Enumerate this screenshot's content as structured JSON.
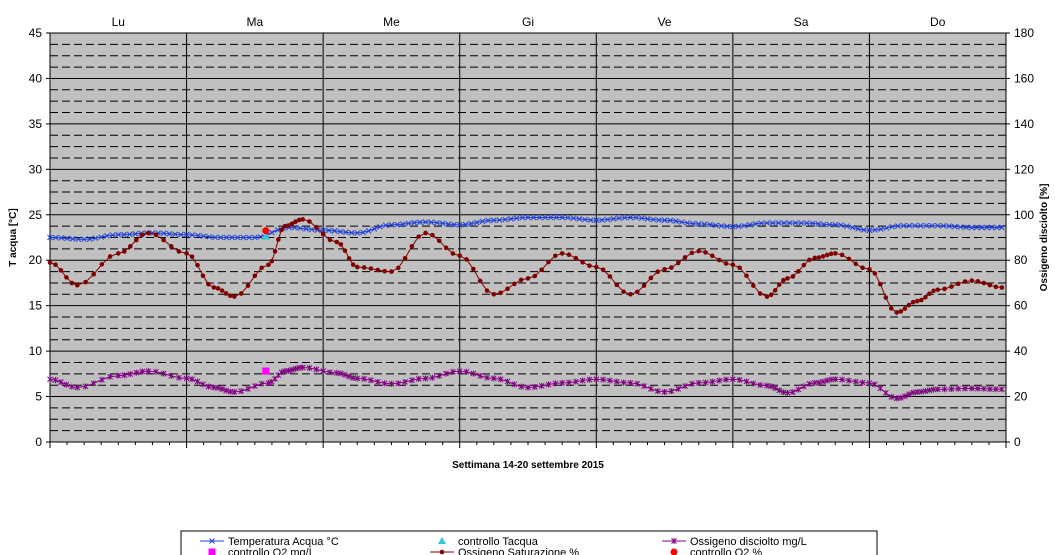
{
  "chart_data": {
    "type": "line",
    "xlabel": "Settimana    14-20  settembre  2015",
    "ylabel_left": "T acqua [°C]",
    "ylabel_right": "Ossigeno disciolto [%]",
    "ylim_left": [
      0,
      45
    ],
    "ylim_right": [
      0,
      180
    ],
    "yticks_left": [
      0,
      5,
      10,
      15,
      20,
      25,
      30,
      35,
      40,
      45
    ],
    "yticks_right": [
      0,
      20,
      40,
      60,
      80,
      100,
      120,
      140,
      160,
      180
    ],
    "days": [
      "Lu",
      "Ma",
      "Me",
      "Gi",
      "Ve",
      "Sa",
      "Do"
    ],
    "grid": true,
    "plot_background": "#c0c0c0",
    "legend_position": "bottom",
    "series": [
      {
        "name": "Temperatura Acqua °C",
        "axis": "left",
        "color": "#1f3fd8",
        "marker": "x",
        "x": [
          0,
          0.25,
          0.5,
          0.75,
          1.0,
          1.25,
          1.5,
          1.75,
          2.0,
          2.25,
          2.5,
          2.75,
          3.0,
          3.25,
          3.5,
          3.75,
          4.0,
          4.25,
          4.5,
          4.75,
          5.0,
          5.25,
          5.5,
          5.75,
          6.0,
          6.25,
          6.5,
          6.75,
          6.97
        ],
        "y": [
          22.5,
          22.3,
          22.8,
          23.0,
          22.8,
          22.5,
          22.5,
          23.6,
          23.3,
          23.0,
          23.9,
          24.2,
          23.9,
          24.4,
          24.7,
          24.7,
          24.4,
          24.7,
          24.4,
          24.0,
          23.7,
          24.1,
          24.1,
          23.9,
          23.3,
          23.8,
          23.8,
          23.6,
          23.6
        ]
      },
      {
        "name": "Ossigeno Saturazione %",
        "axis": "right",
        "color": "#800000",
        "marker": "dot",
        "x": [
          0,
          0.2,
          0.5,
          0.72,
          1.0,
          1.2,
          1.35,
          1.6,
          1.72,
          1.85,
          2.1,
          2.25,
          2.5,
          2.75,
          3.0,
          3.25,
          3.5,
          3.75,
          4.0,
          4.25,
          4.5,
          4.75,
          5.0,
          5.25,
          5.4,
          5.6,
          5.75,
          6.0,
          6.2,
          6.35,
          6.5,
          6.75,
          6.97
        ],
        "y": [
          79,
          69,
          83,
          92,
          83,
          68,
          64,
          78,
          95,
          98,
          88,
          77,
          75,
          92,
          82,
          65,
          72,
          83,
          77,
          65,
          76,
          84,
          78,
          64,
          72,
          81,
          83,
          76,
          57,
          62,
          67,
          71,
          68
        ]
      },
      {
        "name": "Ossigeno disciolto mg/L",
        "axis": "left",
        "color": "#800080",
        "marker": "star",
        "x": [
          0,
          0.2,
          0.5,
          0.72,
          1.0,
          1.2,
          1.35,
          1.6,
          1.72,
          1.85,
          2.1,
          2.25,
          2.5,
          2.75,
          3.0,
          3.25,
          3.5,
          3.75,
          4.0,
          4.25,
          4.5,
          4.75,
          5.0,
          5.25,
          5.4,
          5.6,
          5.75,
          6.0,
          6.2,
          6.35,
          6.5,
          6.75,
          6.97
        ],
        "y": [
          6.9,
          6.0,
          7.3,
          7.8,
          7.0,
          6.0,
          5.5,
          6.5,
          7.8,
          8.2,
          7.6,
          7.0,
          6.4,
          7.0,
          7.8,
          7.0,
          6.0,
          6.5,
          6.9,
          6.5,
          5.5,
          6.5,
          6.9,
          6.2,
          5.4,
          6.5,
          6.9,
          6.5,
          4.8,
          5.5,
          5.8,
          5.9,
          5.8
        ]
      },
      {
        "name": "controllo Tacqua",
        "axis": "left",
        "color": "#33cccc",
        "marker": "triangle",
        "x": [
          1.58
        ],
        "y": [
          22.6
        ]
      },
      {
        "name": "controllo O2 mg/L",
        "axis": "left",
        "color": "#ff00ff",
        "marker": "square",
        "x": [
          1.58
        ],
        "y": [
          7.8
        ]
      },
      {
        "name": "controllo O2 %",
        "axis": "right",
        "color": "#ff0000",
        "marker": "circle",
        "x": [
          1.58
        ],
        "y": [
          93
        ]
      }
    ]
  }
}
